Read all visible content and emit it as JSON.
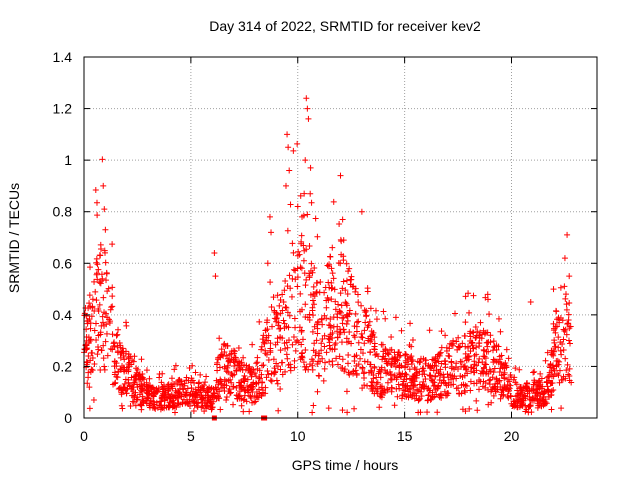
{
  "colors": {
    "points": "#ff0000",
    "grid": "#a0a0a0",
    "axis": "#000000",
    "background": "#ffffff"
  },
  "chart_data": {
    "type": "scatter",
    "title": "Day 314 of 2022, SRMTID for receiver kev2",
    "xlabel": "GPS time / hours",
    "ylabel": "SRMTID / TECUs",
    "xlim": [
      0,
      24
    ],
    "ylim": [
      0,
      1.4
    ],
    "xticks": [
      0,
      5,
      10,
      15,
      20
    ],
    "yticks": [
      0,
      0.2,
      0.4,
      0.6,
      0.8,
      1,
      1.2,
      1.4
    ],
    "xtick_labels": [
      "0",
      "5",
      "10",
      "15",
      "20"
    ],
    "ytick_labels": [
      "0",
      "0.2",
      "0.4",
      "0.6",
      "0.8",
      "1",
      "1.2",
      "1.4"
    ],
    "grid": true,
    "marker": "plus",
    "series": [
      {
        "name": "kev2",
        "color": "#ff0000",
        "profile": [
          [
            0.0,
            0.25
          ],
          [
            0.3,
            0.3
          ],
          [
            0.6,
            0.38
          ],
          [
            0.9,
            0.42
          ],
          [
            1.2,
            0.35
          ],
          [
            1.5,
            0.2
          ],
          [
            2.0,
            0.16
          ],
          [
            2.5,
            0.12
          ],
          [
            3.0,
            0.08
          ],
          [
            3.5,
            0.07
          ],
          [
            4.0,
            0.08
          ],
          [
            4.5,
            0.09
          ],
          [
            5.0,
            0.09
          ],
          [
            5.5,
            0.08
          ],
          [
            6.0,
            0.07
          ],
          [
            6.3,
            0.15
          ],
          [
            6.6,
            0.18
          ],
          [
            7.0,
            0.16
          ],
          [
            7.5,
            0.14
          ],
          [
            8.0,
            0.12
          ],
          [
            8.5,
            0.22
          ],
          [
            8.8,
            0.3
          ],
          [
            9.2,
            0.28
          ],
          [
            9.6,
            0.4
          ],
          [
            10.0,
            0.45
          ],
          [
            10.4,
            0.4
          ],
          [
            10.8,
            0.35
          ],
          [
            11.2,
            0.3
          ],
          [
            11.6,
            0.4
          ],
          [
            12.0,
            0.42
          ],
          [
            12.4,
            0.35
          ],
          [
            12.8,
            0.3
          ],
          [
            13.2,
            0.25
          ],
          [
            13.6,
            0.2
          ],
          [
            14.0,
            0.17
          ],
          [
            14.5,
            0.16
          ],
          [
            15.0,
            0.16
          ],
          [
            15.5,
            0.14
          ],
          [
            16.0,
            0.14
          ],
          [
            16.5,
            0.16
          ],
          [
            17.0,
            0.18
          ],
          [
            17.5,
            0.19
          ],
          [
            18.0,
            0.2
          ],
          [
            18.5,
            0.22
          ],
          [
            19.0,
            0.2
          ],
          [
            19.5,
            0.15
          ],
          [
            20.0,
            0.1
          ],
          [
            20.5,
            0.08
          ],
          [
            21.0,
            0.09
          ],
          [
            21.5,
            0.1
          ],
          [
            21.8,
            0.12
          ],
          [
            22.0,
            0.25
          ],
          [
            22.3,
            0.28
          ],
          [
            22.6,
            0.3
          ],
          [
            22.8,
            0.25
          ]
        ],
        "density_per_hour": 90,
        "scatter_factor": 0.6,
        "spikes": [
          {
            "x": 0.9,
            "y": 0.9
          },
          {
            "x": 0.95,
            "y": 0.81
          },
          {
            "x": 1.0,
            "y": 0.73
          },
          {
            "x": 6.1,
            "y": 0.64
          },
          {
            "x": 6.15,
            "y": 0.55
          },
          {
            "x": 8.7,
            "y": 0.78
          },
          {
            "x": 8.75,
            "y": 0.72
          },
          {
            "x": 8.6,
            "y": 0.6
          },
          {
            "x": 9.5,
            "y": 1.1
          },
          {
            "x": 9.55,
            "y": 1.05
          },
          {
            "x": 9.6,
            "y": 0.96
          },
          {
            "x": 9.45,
            "y": 0.9
          },
          {
            "x": 10.0,
            "y": 0.82
          },
          {
            "x": 10.2,
            "y": 0.78
          },
          {
            "x": 10.3,
            "y": 0.87
          },
          {
            "x": 10.4,
            "y": 1.24
          },
          {
            "x": 10.45,
            "y": 1.2
          },
          {
            "x": 10.5,
            "y": 1.16
          },
          {
            "x": 10.35,
            "y": 1.0
          },
          {
            "x": 10.6,
            "y": 0.97
          },
          {
            "x": 12.0,
            "y": 0.94
          },
          {
            "x": 12.1,
            "y": 0.77
          },
          {
            "x": 12.15,
            "y": 0.69
          },
          {
            "x": 13.0,
            "y": 0.8
          },
          {
            "x": 18.9,
            "y": 0.46
          },
          {
            "x": 20.9,
            "y": 0.45
          },
          {
            "x": 22.6,
            "y": 0.71
          },
          {
            "x": 22.5,
            "y": 0.62
          },
          {
            "x": 22.7,
            "y": 0.55
          }
        ],
        "zero_markers": [
          6.1,
          8.4,
          8.45
        ]
      }
    ]
  }
}
